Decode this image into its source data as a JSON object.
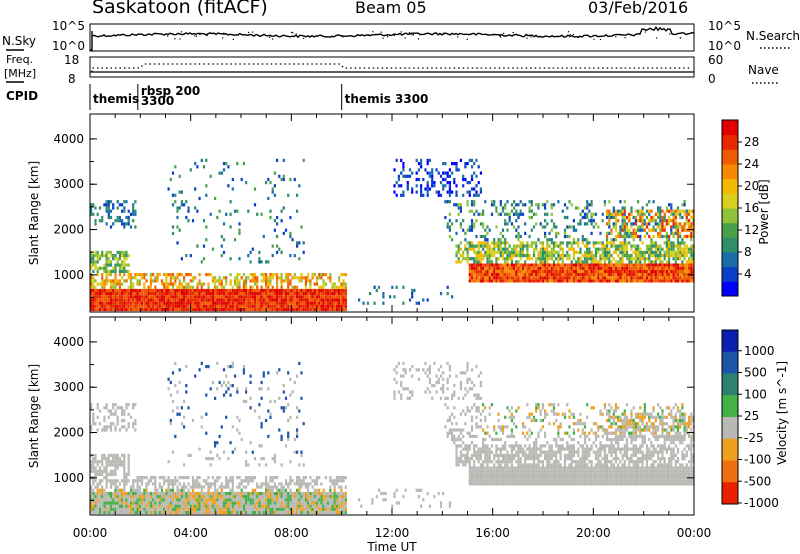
{
  "header": {
    "station": "Saskatoon (fitACF)",
    "beam": "Beam 05",
    "date": "03/Feb/2016"
  },
  "strips": {
    "nsky_label": "N.Sky",
    "nsky_ticks": [
      "10^5",
      "10^0"
    ],
    "nsearch_label": "N.Search",
    "freq_label_1": "Freq.",
    "freq_label_2": "[MHz]",
    "freq_ticks": [
      "18",
      "8"
    ],
    "nave_label": "Nave",
    "nave_ticks": [
      "60",
      "0"
    ],
    "cpid_label": "CPID",
    "cpid_segments": [
      {
        "start_hour": 0.0,
        "text_1": "themis",
        "text_2": ""
      },
      {
        "start_hour": 1.9,
        "text_1": "rbsp 200",
        "text_2": "3300"
      },
      {
        "start_hour": 10.0,
        "text_1": "themis 3300",
        "text_2": ""
      }
    ]
  },
  "chart_data": [
    {
      "type": "heatmap",
      "title": "",
      "ylabel": "Slant Range [km]",
      "ylim": [
        180,
        4550
      ],
      "xlim": [
        0,
        24
      ],
      "yticks": [
        1000,
        2000,
        3000,
        4000
      ],
      "colorbar": {
        "label": "Power [dB]",
        "range": [
          0,
          32
        ],
        "ticks": [
          "28",
          "24",
          "20",
          "16",
          "12",
          "8",
          "4"
        ],
        "colors": [
          "#0000ff",
          "#0a3fc8",
          "#1a6ea8",
          "#2f8f6a",
          "#4aa04a",
          "#8fc23a",
          "#d8d020",
          "#f5b800",
          "#f58a00",
          "#f05a00",
          "#e82800",
          "#e00000"
        ]
      }
    },
    {
      "type": "heatmap",
      "title": "",
      "ylabel": "Slant Range [km]",
      "ylim": [
        180,
        4550
      ],
      "xlim": [
        0,
        24
      ],
      "xlabel": "Time UT",
      "xticks": [
        "00:00",
        "04:00",
        "08:00",
        "12:00",
        "16:00",
        "20:00",
        "00:00"
      ],
      "yticks": [
        1000,
        2000,
        3000,
        4000
      ],
      "colorbar": {
        "label": "Velocity [m s^-1]",
        "ticks": [
          "1000",
          "500",
          "100",
          "25",
          "-25",
          "-100",
          "-500",
          "-1000"
        ],
        "colors": [
          "#0a1fb0",
          "#1d55a8",
          "#2e8070",
          "#44b048",
          "#b8b8b4",
          "#f0a020",
          "#f07010",
          "#e82000"
        ]
      }
    }
  ]
}
